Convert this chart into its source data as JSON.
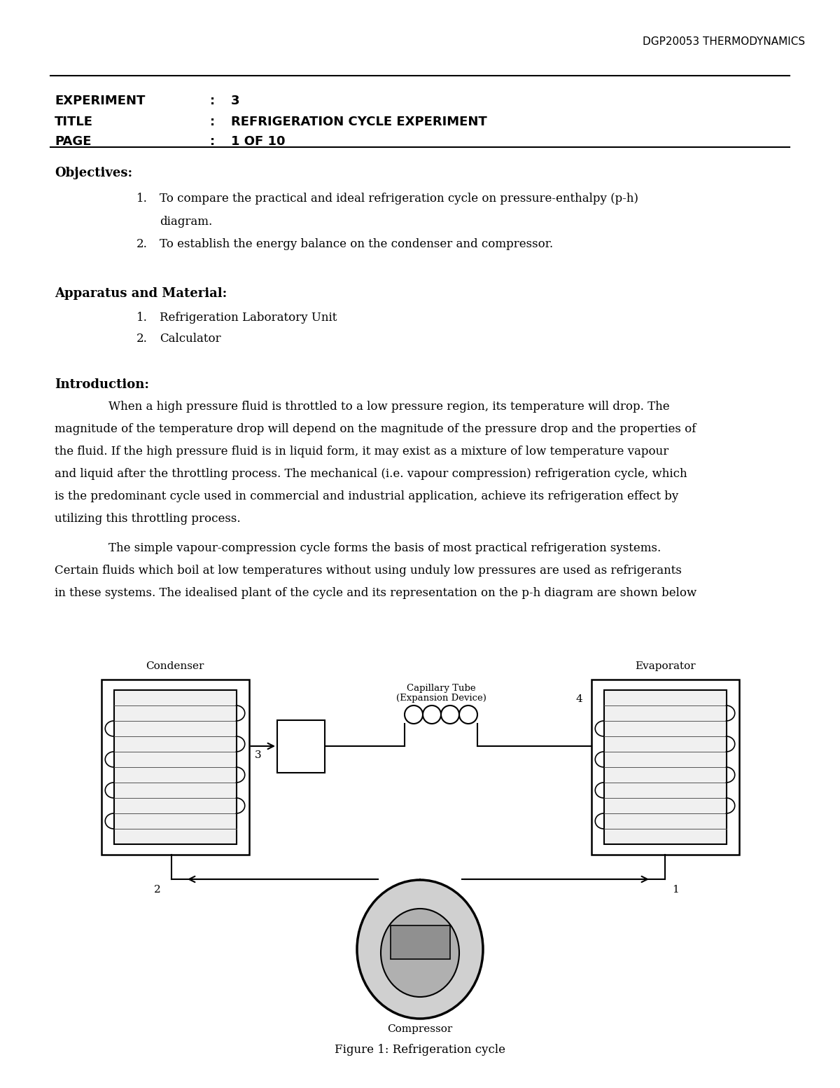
{
  "header_text": "DGP20053 THERMODYNAMICS",
  "experiment_label": "EXPERIMENT",
  "experiment_colon": ":",
  "experiment_value": "3",
  "title_label": "TITLE",
  "title_colon": ":",
  "title_value": "REFRIGERATION CYCLE EXPERIMENT",
  "page_label": "PAGE",
  "page_colon": ":",
  "page_value": "1 OF 10",
  "objectives_heading": "Objectives:",
  "obj1a": "To compare the practical and ideal refrigeration cycle on pressure-enthalpy (p-h)",
  "obj1b": "diagram.",
  "obj2": "To establish the energy balance on the condenser and compressor.",
  "apparatus_heading": "Apparatus and Material:",
  "app1": "Refrigeration Laboratory Unit",
  "app2": "Calculator",
  "intro_heading": "Introduction:",
  "para1_lines": [
    "When a high pressure fluid is throttled to a low pressure region, its temperature will drop. The",
    "magnitude of the temperature drop will depend on the magnitude of the pressure drop and the properties of",
    "the fluid. If the high pressure fluid is in liquid form, it may exist as a mixture of low temperature vapour",
    "and liquid after the throttling process. The mechanical (i.e. vapour compression) refrigeration cycle, which",
    "is the predominant cycle used in commercial and industrial application, achieve its refrigeration effect by",
    "utilizing this throttling process."
  ],
  "para2_lines": [
    "The simple vapour-compression cycle forms the basis of most practical refrigeration systems.",
    "Certain fluids which boil at low temperatures without using unduly low pressures are used as refrigerants",
    "in these systems. The idealised plant of the cycle and its representation on the p-h diagram are shown below"
  ],
  "figure_caption": "Figure 1: Refrigeration cycle",
  "bg_color": "#ffffff",
  "text_color": "#000000"
}
